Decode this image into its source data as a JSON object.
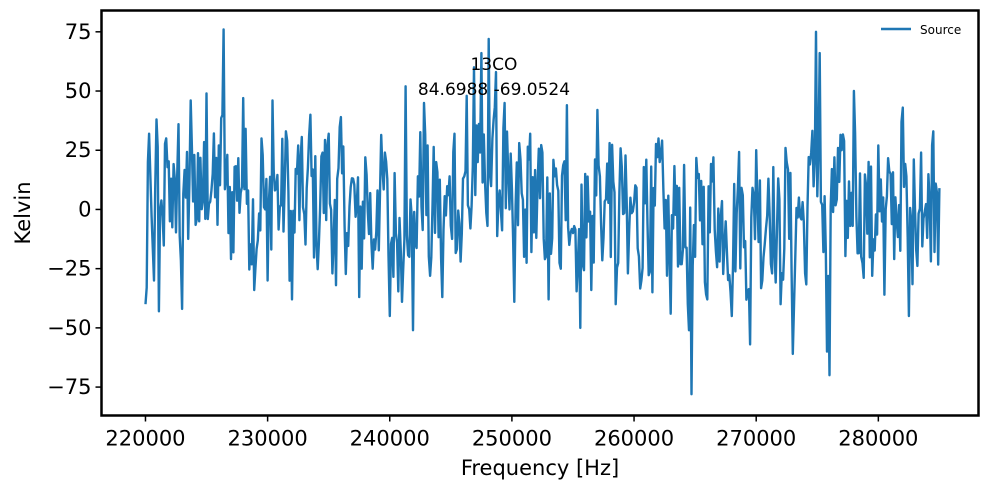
{
  "chart_data": {
    "type": "line",
    "title": "",
    "xlabel": "Frequency [Hz]",
    "ylabel": "Kelvin",
    "xlim": [
      216400,
      288200
    ],
    "ylim": [
      -87,
      84
    ],
    "xticks": [
      220000,
      230000,
      240000,
      250000,
      260000,
      270000,
      280000
    ],
    "yticks": [
      75,
      50,
      25,
      0,
      -25,
      -50,
      -75
    ],
    "grid": false,
    "legend_position": "top-right",
    "annotations": [
      "13CO",
      "84.6988 -69.0524"
    ],
    "series": [
      {
        "name": "Source",
        "color": "#1f77b4",
        "x_start": 220000,
        "x_step": 100,
        "noise_amplitude": 55,
        "anchors": [
          [
            220000,
            -40
          ],
          [
            220100,
            -33
          ],
          [
            220200,
            20
          ],
          [
            220300,
            32
          ],
          [
            220500,
            -3
          ],
          [
            220700,
            -30
          ],
          [
            220900,
            38
          ],
          [
            221100,
            -43
          ],
          [
            221400,
            -3
          ],
          [
            221700,
            30
          ],
          [
            222000,
            -5
          ],
          [
            222400,
            13
          ],
          [
            222700,
            36
          ],
          [
            223000,
            -42
          ],
          [
            223300,
            5
          ],
          [
            223700,
            46
          ],
          [
            224000,
            23
          ],
          [
            224400,
            -5
          ],
          [
            225000,
            49
          ],
          [
            225500,
            15
          ],
          [
            226000,
            27
          ],
          [
            226400,
            76
          ],
          [
            226800,
            -10
          ],
          [
            227300,
            18
          ],
          [
            228000,
            47
          ],
          [
            228400,
            8
          ],
          [
            229000,
            -25
          ],
          [
            229500,
            30
          ],
          [
            230000,
            -30
          ],
          [
            230400,
            46
          ],
          [
            231000,
            1
          ],
          [
            231500,
            33
          ],
          [
            232000,
            -38
          ],
          [
            232500,
            27
          ],
          [
            233000,
            -2
          ],
          [
            233500,
            40
          ],
          [
            234000,
            -15
          ],
          [
            234500,
            24
          ],
          [
            235000,
            32
          ],
          [
            235600,
            -32
          ],
          [
            236000,
            39
          ],
          [
            236500,
            -10
          ],
          [
            237000,
            13
          ],
          [
            237500,
            -37
          ],
          [
            238000,
            22
          ],
          [
            238600,
            -25
          ],
          [
            239000,
            8
          ],
          [
            239600,
            24
          ],
          [
            240000,
            -45
          ],
          [
            240500,
            -10
          ],
          [
            241000,
            -39
          ],
          [
            241300,
            52
          ],
          [
            241600,
            -20
          ],
          [
            241900,
            -51
          ],
          [
            242300,
            14
          ],
          [
            242800,
            45
          ],
          [
            243300,
            -28
          ],
          [
            243800,
            20
          ],
          [
            244300,
            -37
          ],
          [
            244800,
            6
          ],
          [
            245300,
            32
          ],
          [
            245800,
            -22
          ],
          [
            246300,
            48
          ],
          [
            246600,
            -8
          ],
          [
            246900,
            60
          ],
          [
            247200,
            20
          ],
          [
            247500,
            66
          ],
          [
            247800,
            12
          ],
          [
            248100,
            72
          ],
          [
            248400,
            30
          ],
          [
            248700,
            58
          ],
          [
            249000,
            8
          ],
          [
            249400,
            45
          ],
          [
            249800,
            0
          ],
          [
            250200,
            -39
          ],
          [
            250600,
            28
          ],
          [
            251000,
            -20
          ],
          [
            251500,
            32
          ],
          [
            252000,
            -12
          ],
          [
            252500,
            24
          ],
          [
            253000,
            -38
          ],
          [
            253500,
            14
          ],
          [
            254000,
            -25
          ],
          [
            254500,
            44
          ],
          [
            255000,
            -10
          ],
          [
            255600,
            -50
          ],
          [
            256000,
            15
          ],
          [
            256500,
            -34
          ],
          [
            257000,
            42
          ],
          [
            257500,
            -12
          ],
          [
            258000,
            28
          ],
          [
            258500,
            -40
          ],
          [
            259000,
            18
          ],
          [
            259500,
            -27
          ],
          [
            260000,
            3
          ],
          [
            260600,
            -30
          ],
          [
            261000,
            21
          ],
          [
            261500,
            -35
          ],
          [
            262000,
            30
          ],
          [
            262500,
            -8
          ],
          [
            263000,
            -44
          ],
          [
            263500,
            10
          ],
          [
            264000,
            -17
          ],
          [
            264500,
            -51
          ],
          [
            264700,
            -78
          ],
          [
            265000,
            -20
          ],
          [
            265500,
            12
          ],
          [
            266000,
            -38
          ],
          [
            266500,
            22
          ],
          [
            267000,
            -22
          ],
          [
            267500,
            -5
          ],
          [
            268000,
            -45
          ],
          [
            268500,
            9
          ],
          [
            269000,
            -16
          ],
          [
            269500,
            -57
          ],
          [
            270000,
            25
          ],
          [
            270500,
            -30
          ],
          [
            271000,
            13
          ],
          [
            271500,
            -18
          ],
          [
            272000,
            -40
          ],
          [
            272500,
            20
          ],
          [
            273000,
            -61
          ],
          [
            273500,
            5
          ],
          [
            274000,
            -27
          ],
          [
            274500,
            24
          ],
          [
            274900,
            75
          ],
          [
            275200,
            66
          ],
          [
            275500,
            -18
          ],
          [
            275800,
            -60
          ],
          [
            276000,
            -70
          ],
          [
            276400,
            22
          ],
          [
            277000,
            25
          ],
          [
            277500,
            -12
          ],
          [
            278000,
            50
          ],
          [
            278600,
            -20
          ],
          [
            279000,
            10
          ],
          [
            279500,
            -28
          ],
          [
            280000,
            27
          ],
          [
            280500,
            -36
          ],
          [
            281000,
            15
          ],
          [
            281500,
            -5
          ],
          [
            282000,
            43
          ],
          [
            282500,
            -45
          ],
          [
            283000,
            0
          ],
          [
            283500,
            24
          ],
          [
            284000,
            -12
          ],
          [
            284500,
            33
          ],
          [
            284800,
            7
          ],
          [
            285000,
            9
          ]
        ]
      }
    ]
  }
}
